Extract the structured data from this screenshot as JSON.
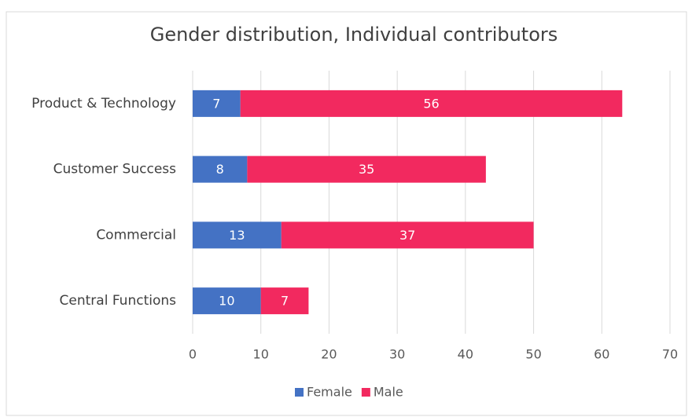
{
  "chart_data": {
    "type": "stacked_barh",
    "title": "Gender distribution, Individual contributors",
    "categories": [
      "Product & Technology",
      "Customer Success",
      "Commercial",
      "Central Functions"
    ],
    "series": [
      {
        "name": "Female",
        "color": "#4472c4",
        "values": [
          7,
          8,
          13,
          10
        ]
      },
      {
        "name": "Male",
        "color": "#f2295f",
        "values": [
          56,
          35,
          37,
          7
        ]
      }
    ],
    "xlim": [
      0,
      70
    ],
    "xticks": [
      0,
      10,
      20,
      30,
      40,
      50,
      60,
      70
    ],
    "grid": true,
    "legend": "bottom"
  }
}
